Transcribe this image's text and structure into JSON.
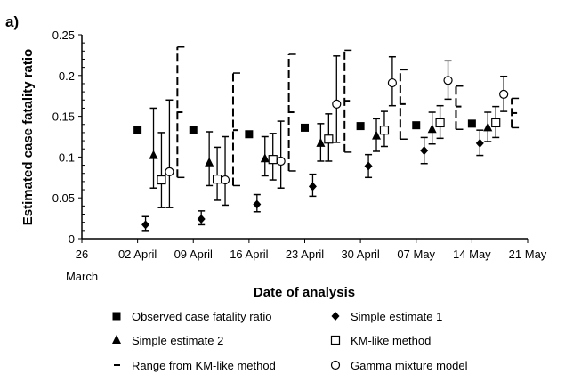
{
  "chart_data": {
    "type": "scatter",
    "panel_label": "a)",
    "title": "",
    "xlabel": "Date of analysis",
    "ylabel": "Estimated case fatality ratio",
    "x_unit": "days since 26 March",
    "xlim": [
      0,
      56
    ],
    "ylim": [
      0,
      0.25
    ],
    "yticks": [
      0,
      0.05,
      0.1,
      0.15,
      0.2,
      0.25
    ],
    "ytick_labels": [
      "0",
      "0.05",
      "0.1",
      "0.15",
      "0.2",
      "0.25"
    ],
    "xticks": [
      0,
      7,
      14,
      21,
      28,
      35,
      42,
      49,
      56
    ],
    "xtick_labels": [
      "26",
      "02 April",
      "09 April",
      "16 April",
      "23 April",
      "30 April",
      "07 May",
      "14 May",
      "21 May"
    ],
    "xtick_sublabel": "March",
    "grid": false,
    "legend_placement": "bottom",
    "series": [
      {
        "name": "Observed case fatality ratio",
        "marker": "filled-square",
        "points": [
          {
            "x": 7,
            "y": 0.133
          },
          {
            "x": 14,
            "y": 0.133
          },
          {
            "x": 21,
            "y": 0.128
          },
          {
            "x": 28,
            "y": 0.136
          },
          {
            "x": 35,
            "y": 0.138
          },
          {
            "x": 42,
            "y": 0.139
          },
          {
            "x": 49,
            "y": 0.141
          }
        ]
      },
      {
        "name": "Simple estimate 1",
        "marker": "filled-diamond",
        "points": [
          {
            "x": 8,
            "y": 0.017,
            "lo": 0.01,
            "hi": 0.027
          },
          {
            "x": 15,
            "y": 0.024,
            "lo": 0.017,
            "hi": 0.034
          },
          {
            "x": 22,
            "y": 0.042,
            "lo": 0.033,
            "hi": 0.054
          },
          {
            "x": 29,
            "y": 0.064,
            "lo": 0.052,
            "hi": 0.079
          },
          {
            "x": 36,
            "y": 0.089,
            "lo": 0.075,
            "hi": 0.103
          },
          {
            "x": 43,
            "y": 0.108,
            "lo": 0.092,
            "hi": 0.124
          },
          {
            "x": 50,
            "y": 0.117,
            "lo": 0.102,
            "hi": 0.133
          }
        ]
      },
      {
        "name": "Simple estimate 2",
        "marker": "filled-triangle",
        "points": [
          {
            "x": 9,
            "y": 0.102,
            "lo": 0.062,
            "hi": 0.16
          },
          {
            "x": 16,
            "y": 0.093,
            "lo": 0.065,
            "hi": 0.131
          },
          {
            "x": 23,
            "y": 0.098,
            "lo": 0.077,
            "hi": 0.125
          },
          {
            "x": 30,
            "y": 0.117,
            "lo": 0.095,
            "hi": 0.141
          },
          {
            "x": 37,
            "y": 0.126,
            "lo": 0.107,
            "hi": 0.147
          },
          {
            "x": 44,
            "y": 0.134,
            "lo": 0.116,
            "hi": 0.155
          },
          {
            "x": 51,
            "y": 0.136,
            "lo": 0.119,
            "hi": 0.155
          }
        ]
      },
      {
        "name": "KM-like method",
        "marker": "open-square",
        "points": [
          {
            "x": 10,
            "y": 0.072,
            "lo": 0.038,
            "hi": 0.13
          },
          {
            "x": 17,
            "y": 0.073,
            "lo": 0.047,
            "hi": 0.112
          },
          {
            "x": 24,
            "y": 0.097,
            "lo": 0.072,
            "hi": 0.129
          },
          {
            "x": 31,
            "y": 0.122,
            "lo": 0.095,
            "hi": 0.153
          },
          {
            "x": 38,
            "y": 0.133,
            "lo": 0.113,
            "hi": 0.156
          },
          {
            "x": 45,
            "y": 0.142,
            "lo": 0.123,
            "hi": 0.163
          },
          {
            "x": 52,
            "y": 0.142,
            "lo": 0.124,
            "hi": 0.162
          }
        ]
      },
      {
        "name": "Gamma mixture model",
        "marker": "open-circle",
        "points": [
          {
            "x": 11,
            "y": 0.082,
            "lo": 0.038,
            "hi": 0.17
          },
          {
            "x": 18,
            "y": 0.072,
            "lo": 0.041,
            "hi": 0.125
          },
          {
            "x": 25,
            "y": 0.095,
            "lo": 0.062,
            "hi": 0.144
          },
          {
            "x": 32,
            "y": 0.165,
            "lo": 0.118,
            "hi": 0.224
          },
          {
            "x": 39,
            "y": 0.191,
            "lo": 0.163,
            "hi": 0.223
          },
          {
            "x": 46,
            "y": 0.194,
            "lo": 0.171,
            "hi": 0.218
          },
          {
            "x": 53,
            "y": 0.177,
            "lo": 0.156,
            "hi": 0.199
          }
        ]
      },
      {
        "name": "Range from KM-like method",
        "marker": "dash",
        "points": [
          {
            "x": 12,
            "y": 0.155,
            "lo": 0.075,
            "hi": 0.235
          },
          {
            "x": 19,
            "y": 0.133,
            "lo": 0.065,
            "hi": 0.203
          },
          {
            "x": 26,
            "y": 0.155,
            "lo": 0.083,
            "hi": 0.226
          },
          {
            "x": 33,
            "y": 0.169,
            "lo": 0.106,
            "hi": 0.231
          },
          {
            "x": 40,
            "y": 0.165,
            "lo": 0.122,
            "hi": 0.207
          },
          {
            "x": 47,
            "y": 0.162,
            "lo": 0.134,
            "hi": 0.187
          },
          {
            "x": 54,
            "y": 0.154,
            "lo": 0.136,
            "hi": 0.172
          }
        ]
      }
    ],
    "legend": [
      {
        "label": "Observed case fatality ratio",
        "marker": "filled-square"
      },
      {
        "label": "Simple estimate 1",
        "marker": "filled-diamond"
      },
      {
        "label": "Simple estimate 2",
        "marker": "filled-triangle"
      },
      {
        "label": "KM-like method",
        "marker": "open-square"
      },
      {
        "label": "Range from KM-like method",
        "marker": "dash"
      },
      {
        "label": "Gamma mixture model",
        "marker": "open-circle"
      }
    ]
  }
}
